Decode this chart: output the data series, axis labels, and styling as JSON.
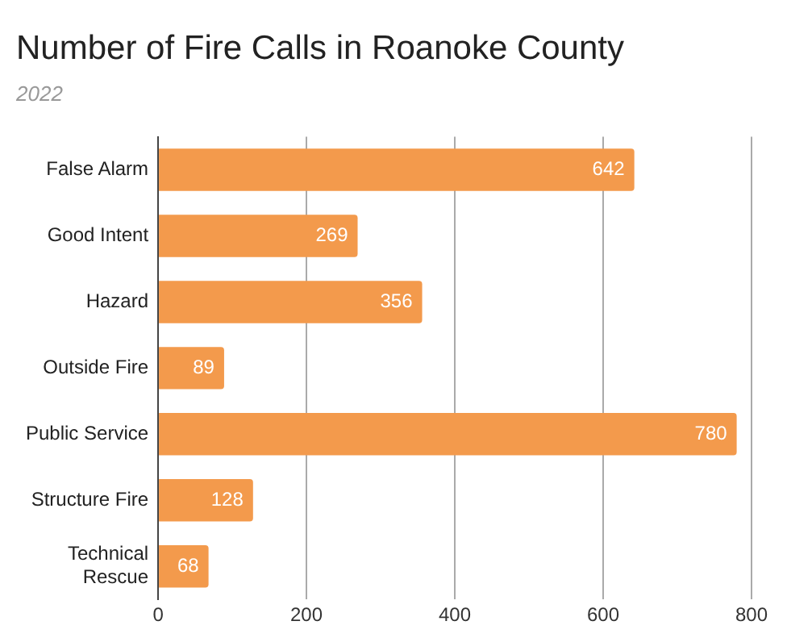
{
  "chart_data": {
    "type": "bar",
    "orientation": "horizontal",
    "title": "Number of Fire Calls in Roanoke County",
    "subtitle": "2022",
    "categories": [
      "False Alarm",
      "Good Intent",
      "Hazard",
      "Outside Fire",
      "Public Service",
      "Structure Fire",
      "Technical Rescue"
    ],
    "values": [
      642,
      269,
      356,
      89,
      780,
      128,
      68
    ],
    "color": "#f39a4c",
    "xlim": [
      0,
      800
    ],
    "xticks": [
      0,
      200,
      400,
      600,
      800
    ],
    "grid": "x",
    "data_labels": true,
    "legend": false
  }
}
